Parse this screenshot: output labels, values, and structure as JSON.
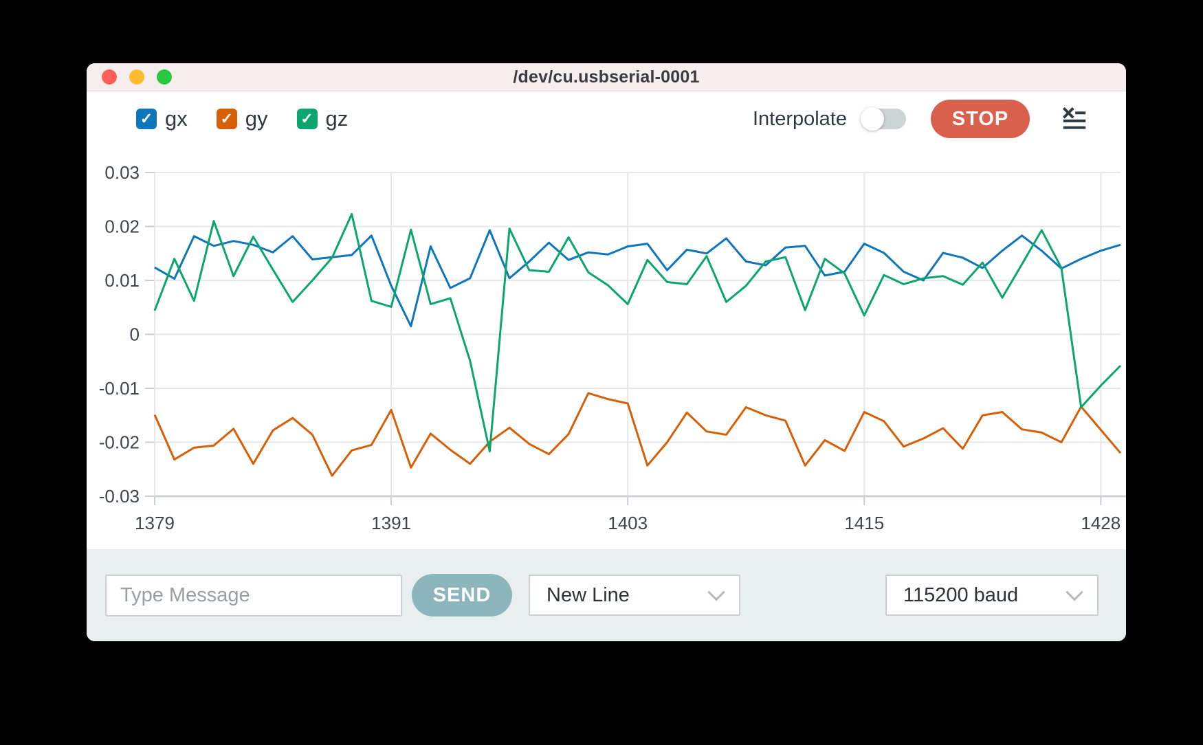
{
  "window": {
    "title": "/dev/cu.usbserial-0001"
  },
  "legend": [
    {
      "label": "gx",
      "color": "#0f76bb",
      "checked": true
    },
    {
      "label": "gy",
      "color": "#d65f07",
      "checked": true
    },
    {
      "label": "gz",
      "color": "#0ba66e",
      "checked": true
    }
  ],
  "controls": {
    "interpolate_label": "Interpolate",
    "interpolate_on": false,
    "stop_label": "STOP"
  },
  "bottom_bar": {
    "message_placeholder": "Type Message",
    "send_label": "SEND",
    "line_ending_value": "New Line",
    "baud_value": "115200 baud"
  },
  "chart_data": {
    "type": "line",
    "x_start": 1379,
    "x_end": 1428,
    "x_tick_labels": [
      "1379",
      "1391",
      "1403",
      "1415",
      "1428"
    ],
    "x_tick_offsets": [
      0,
      12,
      24,
      36,
      48
    ],
    "y_tick_labels": [
      "0.03",
      "0.02",
      "0.01",
      "0",
      "-0.01",
      "-0.02",
      "-0.03"
    ],
    "y_ticks": [
      0.03,
      0.02,
      0.01,
      0,
      -0.01,
      -0.02,
      -0.03
    ],
    "ylim": [
      -0.03,
      0.03
    ],
    "grid": true,
    "legend_position": "top-left",
    "series": [
      {
        "name": "gx",
        "color": "#0f76bb",
        "values": [
          0.0124,
          0.0103,
          0.0182,
          0.0164,
          0.0173,
          0.0166,
          0.0152,
          0.0182,
          0.0139,
          0.0143,
          0.0147,
          0.0183,
          0.009,
          0.0015,
          0.0163,
          0.0086,
          0.0104,
          0.0193,
          0.0104,
          0.0135,
          0.017,
          0.0138,
          0.0152,
          0.0148,
          0.0163,
          0.0168,
          0.0119,
          0.0157,
          0.015,
          0.0178,
          0.0135,
          0.0128,
          0.0161,
          0.0164,
          0.0109,
          0.0116,
          0.0168,
          0.0151,
          0.0116,
          0.01,
          0.0151,
          0.0142,
          0.0123,
          0.0155,
          0.0183,
          0.0155,
          0.0122,
          0.014,
          0.0155,
          0.0166
        ]
      },
      {
        "name": "gy",
        "color": "#d65f07",
        "values": [
          -0.0149,
          -0.0232,
          -0.021,
          -0.0206,
          -0.0175,
          -0.024,
          -0.0178,
          -0.0155,
          -0.0186,
          -0.0262,
          -0.0215,
          -0.0205,
          -0.014,
          -0.0247,
          -0.0184,
          -0.0214,
          -0.024,
          -0.0199,
          -0.0173,
          -0.0203,
          -0.0222,
          -0.0185,
          -0.0109,
          -0.012,
          -0.0128,
          -0.0243,
          -0.02,
          -0.0145,
          -0.018,
          -0.0186,
          -0.0135,
          -0.015,
          -0.016,
          -0.0243,
          -0.0196,
          -0.0216,
          -0.0144,
          -0.0161,
          -0.0208,
          -0.0193,
          -0.0174,
          -0.0212,
          -0.015,
          -0.0144,
          -0.0176,
          -0.0182,
          -0.02,
          -0.0134,
          -0.0177,
          -0.022
        ]
      },
      {
        "name": "gz",
        "color": "#0ba66e",
        "values": [
          0.0044,
          0.014,
          0.0062,
          0.021,
          0.0108,
          0.0181,
          0.012,
          0.006,
          0.01,
          0.0142,
          0.0223,
          0.0062,
          0.0051,
          0.0194,
          0.0056,
          0.0067,
          -0.0049,
          -0.0217,
          0.0196,
          0.0119,
          0.0116,
          0.018,
          0.0115,
          0.0091,
          0.0056,
          0.0138,
          0.0097,
          0.0093,
          0.0145,
          0.006,
          0.009,
          0.0135,
          0.0143,
          0.0045,
          0.014,
          0.0113,
          0.0035,
          0.011,
          0.0093,
          0.0104,
          0.0108,
          0.0092,
          0.0133,
          0.0068,
          0.013,
          0.0193,
          0.0123,
          -0.0135,
          -0.0095,
          -0.0058
        ]
      }
    ],
    "style": {
      "grid_color": "#e5e7e8",
      "axis_color": "#ced4d6",
      "tick_color": "#c9ced1",
      "label_color": "#3e464d"
    }
  }
}
